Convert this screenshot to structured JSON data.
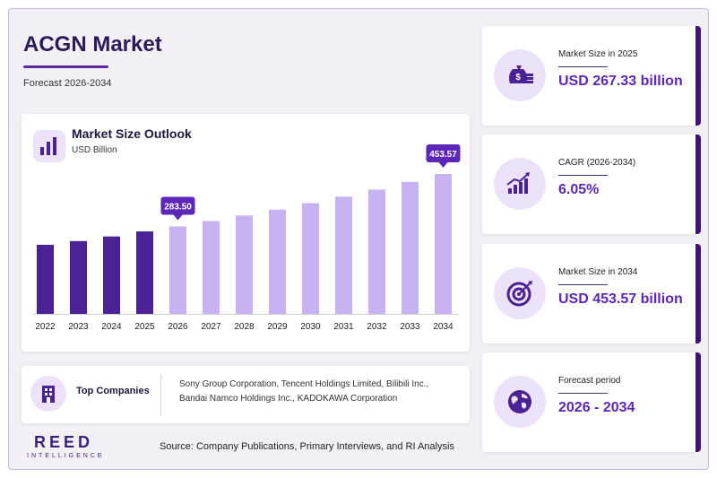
{
  "header": {
    "title": "ACGN Market",
    "subtitle": "Forecast 2026-2034"
  },
  "colors": {
    "historical_bar": "#4a2296",
    "forecast_bar": "#c7b3f2",
    "accent": "#5c26b8",
    "callout": "#5c26b8"
  },
  "chart": {
    "title": "Market Size Outlook",
    "unit": "USD Billion",
    "icon": "bar-chart-icon"
  },
  "chart_data": {
    "type": "bar",
    "title": "Market Size Outlook",
    "ylabel": "USD Billion",
    "categories": [
      "2022",
      "2023",
      "2024",
      "2025",
      "2026",
      "2027",
      "2028",
      "2029",
      "2030",
      "2031",
      "2032",
      "2033",
      "2034"
    ],
    "values": [
      224,
      236,
      251,
      267.33,
      283.5,
      301,
      319,
      338,
      359,
      380,
      403,
      428,
      453.57
    ],
    "historical_through": "2025",
    "labelled_points": [
      {
        "category": "2026",
        "label": "283.50"
      },
      {
        "category": "2034",
        "label": "453.57"
      }
    ],
    "grid": false
  },
  "companies": {
    "icon": "building-icon",
    "label": "Top Companies",
    "text": "Sony Group Corporation, Tencent Holdings Limited, Bilibili Inc., Bandai Namco Holdings Inc., KADOKAWA Corporation"
  },
  "stats": [
    {
      "icon": "money-bag-icon",
      "label": "Market Size in 2025",
      "value": "USD 267.33 billion"
    },
    {
      "icon": "growth-chart-icon",
      "label": "CAGR (2026-2034)",
      "value": "6.05%"
    },
    {
      "icon": "target-icon",
      "label": "Market Size in 2034",
      "value": "USD 453.57 billion"
    },
    {
      "icon": "globe-icon",
      "label": "Forecast period",
      "value": "2026 - 2034"
    }
  ],
  "footer": {
    "logo": "REED",
    "logo_sub": "INTELLIGENCE",
    "source": "Source: Company Publications, Primary Interviews, and RI Analysis"
  }
}
